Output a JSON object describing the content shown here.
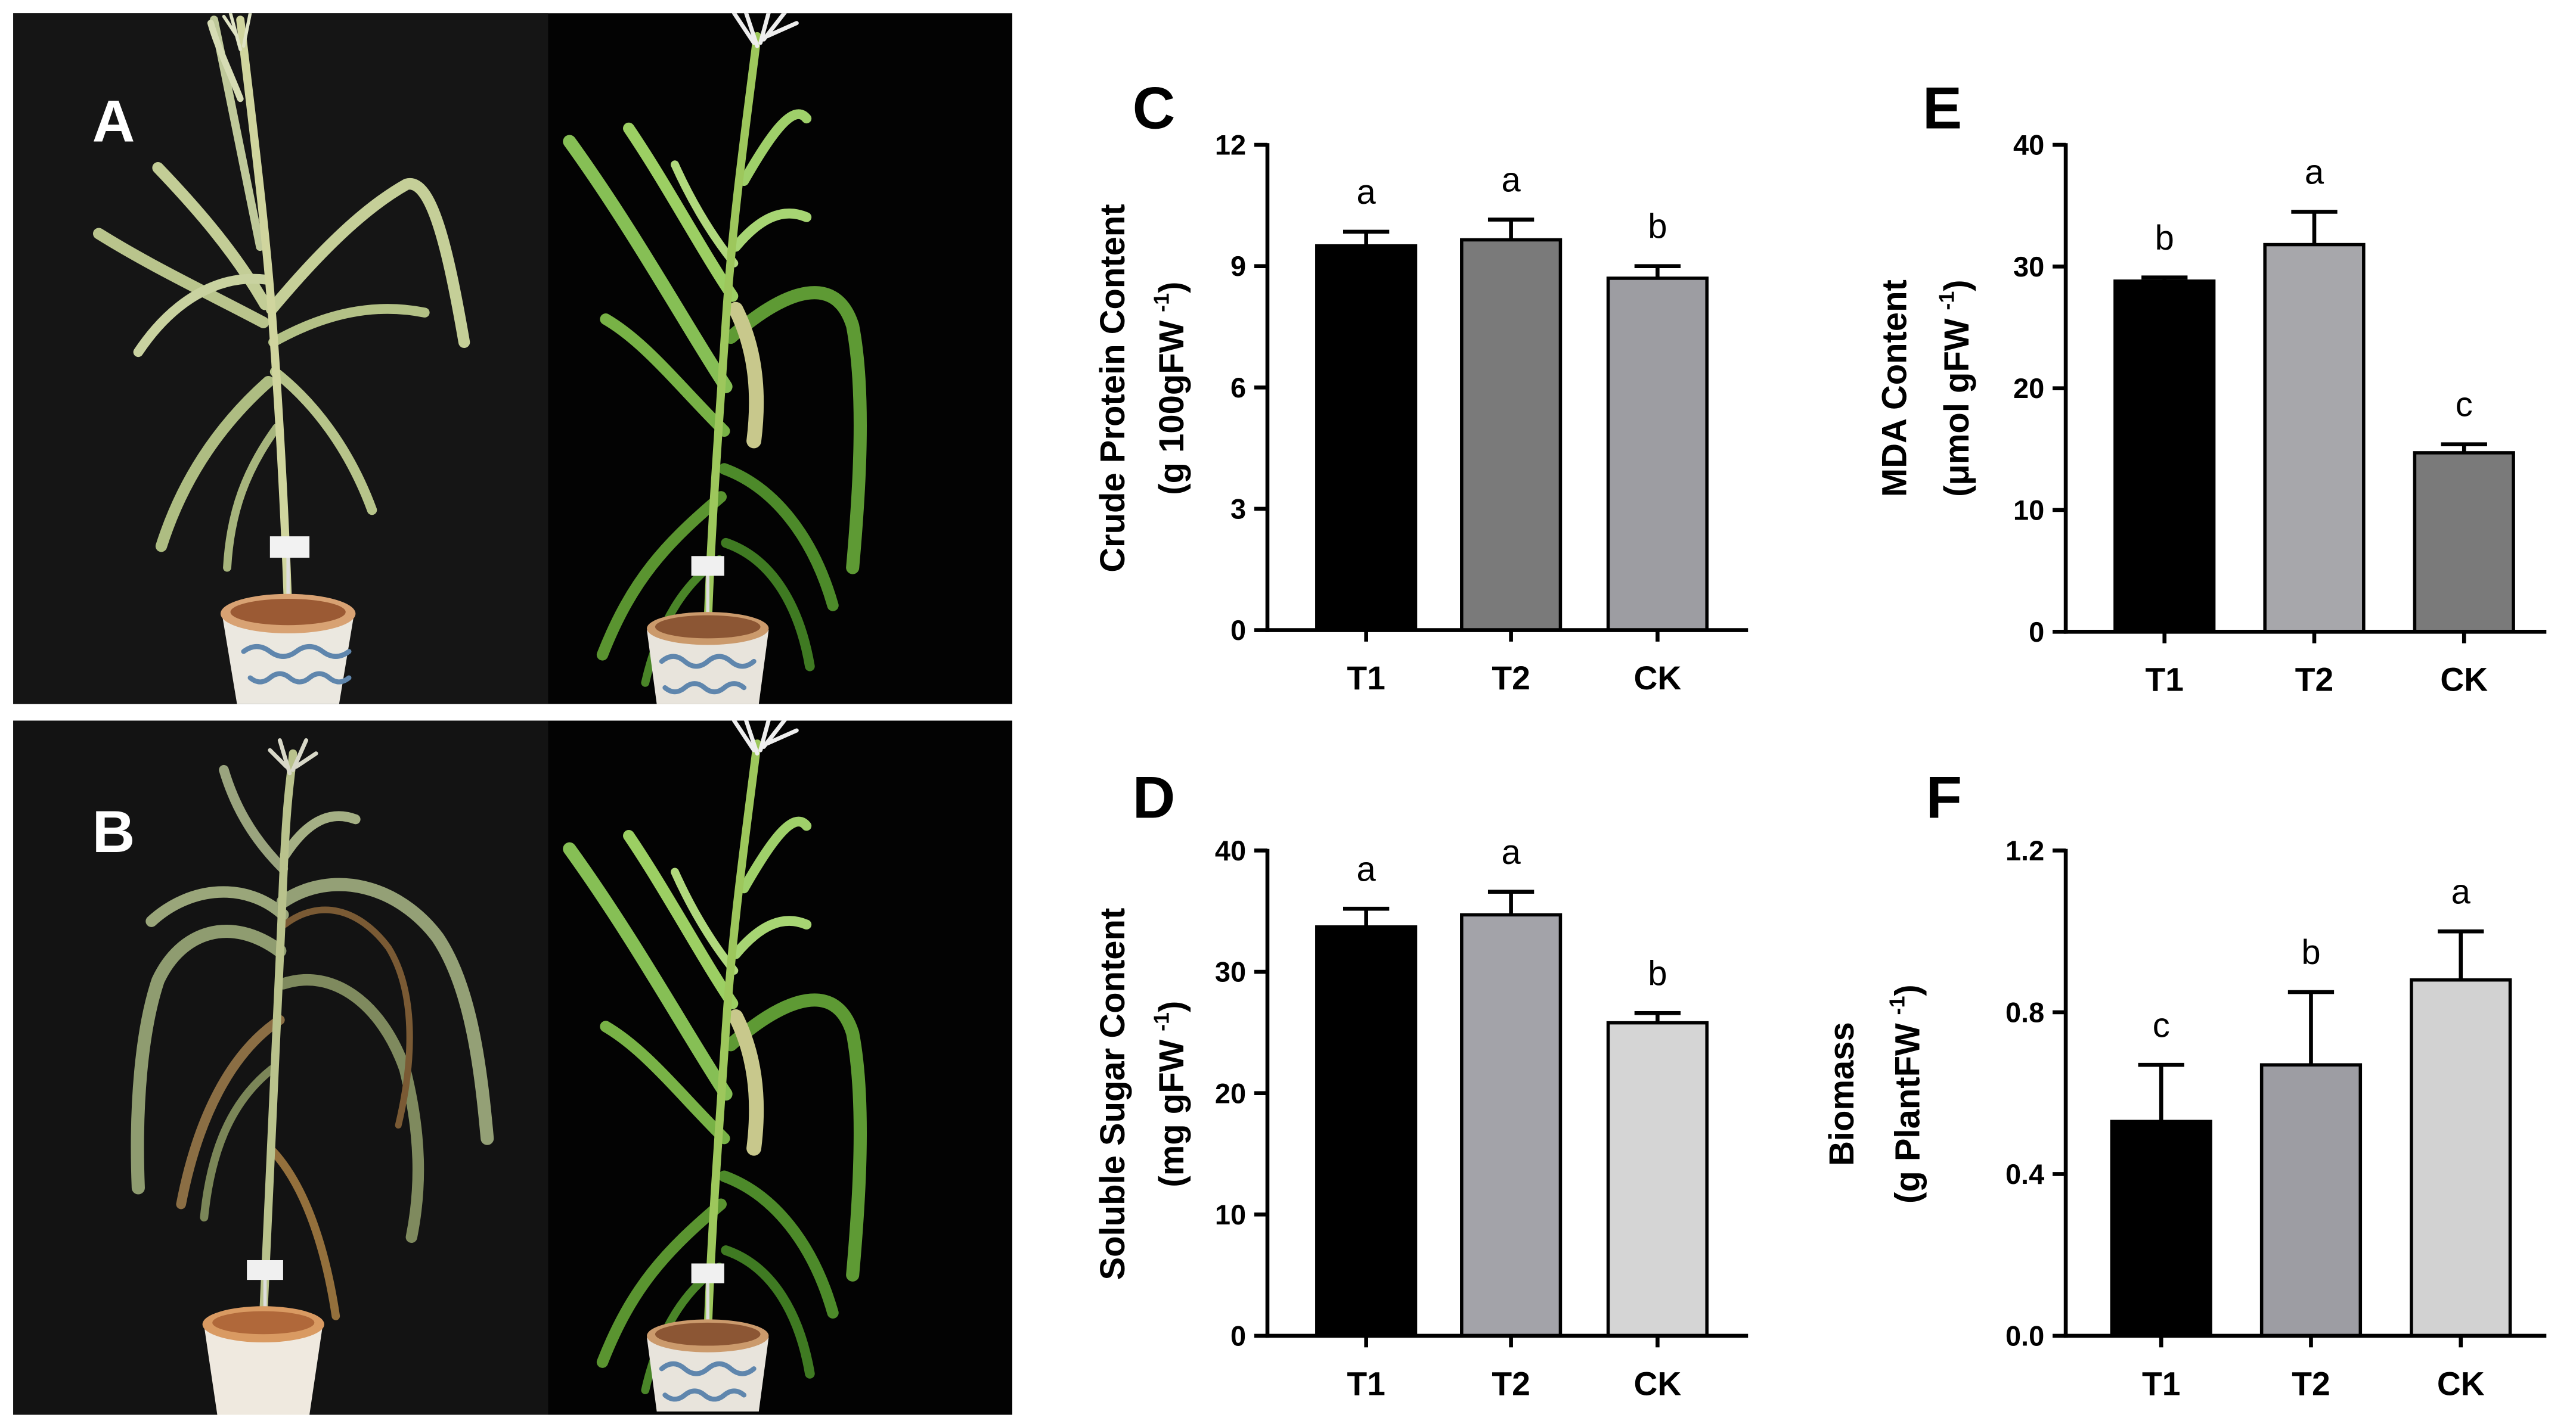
{
  "photos": {
    "panel_a": {
      "label": "A"
    },
    "panel_b": {
      "label": "B"
    }
  },
  "chart_data": [
    {
      "panel_label": "C",
      "type": "bar",
      "categories": [
        "T1",
        "T2",
        "CK"
      ],
      "values": [
        9.5,
        9.65,
        8.7
      ],
      "error_bars": [
        0.35,
        0.5,
        0.3
      ],
      "significance_letters": [
        "a",
        "a",
        "b"
      ],
      "ylabel": "Crude Protein Content",
      "ylabel_unit": {
        "open": "(g 100gFW",
        "superscript": "-1",
        "close": ")"
      },
      "ylim": [
        0,
        12
      ],
      "yticks": [
        "0",
        "3",
        "6",
        "9",
        "12"
      ],
      "grid": false,
      "bar_colors": [
        "#000000",
        "#7a7a7a",
        "#9d9da2"
      ]
    },
    {
      "panel_label": "D",
      "type": "bar",
      "categories": [
        "T1",
        "T2",
        "CK"
      ],
      "values": [
        33.7,
        34.7,
        25.8
      ],
      "error_bars": [
        1.5,
        1.9,
        0.8
      ],
      "significance_letters": [
        "a",
        "a",
        "b"
      ],
      "ylabel": "Soluble Sugar Content",
      "ylabel_unit": {
        "open": "(mg gFW",
        "superscript": "-1",
        "close": ")"
      },
      "ylim": [
        0,
        40
      ],
      "yticks": [
        "0",
        "10",
        "20",
        "30",
        "40"
      ],
      "grid": false,
      "bar_colors": [
        "#000000",
        "#a3a3a9",
        "#d5d5d5"
      ]
    },
    {
      "panel_label": "E",
      "type": "bar",
      "categories": [
        "T1",
        "T2",
        "CK"
      ],
      "values": [
        28.8,
        31.8,
        14.7
      ],
      "error_bars": [
        0.3,
        2.7,
        0.7
      ],
      "significance_letters": [
        "b",
        "a",
        "c"
      ],
      "ylabel": "MDA Content",
      "ylabel_unit": {
        "open": "(μmol gFW",
        "superscript": "-1",
        "close": ")"
      },
      "ylim": [
        0,
        40
      ],
      "yticks": [
        "0",
        "10",
        "20",
        "30",
        "40"
      ],
      "grid": false,
      "bar_colors": [
        "#000000",
        "#a7a7ab",
        "#7a7a7a"
      ]
    },
    {
      "panel_label": "F",
      "type": "bar",
      "categories": [
        "T1",
        "T2",
        "CK"
      ],
      "values": [
        0.53,
        0.67,
        0.88
      ],
      "error_bars": [
        0.14,
        0.18,
        0.12
      ],
      "significance_letters": [
        "c",
        "b",
        "a"
      ],
      "ylabel": "Biomass",
      "ylabel_unit": {
        "open": "(g PlantFW",
        "superscript": "-1",
        "close": ")"
      },
      "ylim": [
        0,
        1.2
      ],
      "yticks": [
        "0.0",
        "0.4",
        "0.8",
        "1.2"
      ],
      "grid": false,
      "bar_colors": [
        "#000000",
        "#9d9da3",
        "#d2d2d2"
      ]
    }
  ]
}
